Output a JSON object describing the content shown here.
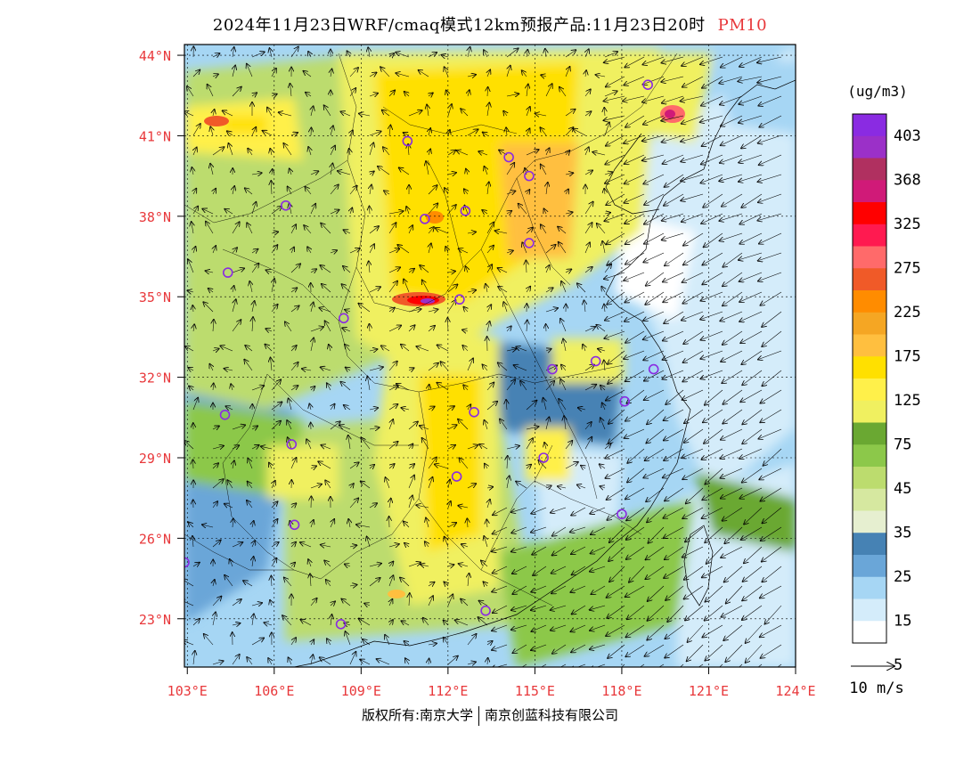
{
  "title": {
    "main": "2024年11月23日WRF/cmaq模式12km预报产品:11月23日20时",
    "variable": "PM10"
  },
  "map": {
    "lat_labels": [
      "44°N",
      "41°N",
      "38°N",
      "35°N",
      "32°N",
      "29°N",
      "26°N",
      "23°N"
    ],
    "lat_values": [
      44,
      41,
      38,
      35,
      32,
      29,
      26,
      23
    ],
    "lon_labels": [
      "103°E",
      "106°E",
      "109°E",
      "112°E",
      "115°E",
      "118°E",
      "121°E",
      "124°E"
    ],
    "lon_values": [
      103,
      106,
      109,
      112,
      115,
      118,
      121,
      124
    ],
    "lon_range": [
      102.9,
      124
    ],
    "lat_range": [
      21.2,
      44.4
    ],
    "label_color": "#e8383b",
    "stations": [
      [
        118.9,
        42.9
      ],
      [
        110.6,
        40.8
      ],
      [
        114.1,
        40.2
      ],
      [
        114.8,
        39.5
      ],
      [
        106.4,
        38.4
      ],
      [
        111.2,
        37.9
      ],
      [
        112.6,
        38.2
      ],
      [
        114.8,
        37.0
      ],
      [
        104.4,
        35.9
      ],
      [
        108.4,
        34.2
      ],
      [
        112.4,
        34.9
      ],
      [
        115.6,
        32.3
      ],
      [
        117.1,
        32.6
      ],
      [
        119.1,
        32.3
      ],
      [
        118.1,
        31.1
      ],
      [
        104.3,
        30.6
      ],
      [
        112.9,
        30.7
      ],
      [
        106.6,
        29.5
      ],
      [
        115.3,
        29.0
      ],
      [
        112.3,
        28.3
      ],
      [
        106.7,
        26.5
      ],
      [
        118.0,
        26.9
      ],
      [
        102.9,
        25.1
      ],
      [
        108.3,
        22.8
      ],
      [
        113.3,
        23.3
      ]
    ]
  },
  "legend": {
    "unit": "(ug/m3)",
    "levels": [
      "403",
      "368",
      "325",
      "275",
      "225",
      "175",
      "125",
      "75",
      "45",
      "35",
      "25",
      "15",
      "5"
    ],
    "colors": [
      "#8a2be2",
      "#9b30c8",
      "#b03060",
      "#d01a78",
      "#ff0000",
      "#ff1a50",
      "#ff6a6a",
      "#f05a28",
      "#ff8c00",
      "#f5a623",
      "#ffbf3f",
      "#ffe000",
      "#fff04a",
      "#f0f060",
      "#6aa832",
      "#8cc84a",
      "#bcdc6e",
      "#d6e8a0",
      "#e6efd0",
      "#4682b4",
      "#6aa6d8",
      "#a6d6f4",
      "#d4ecfa",
      "#ffffff"
    ]
  },
  "wind_legend": {
    "label": "10 m/s"
  },
  "copyright": {
    "left": "版权所有:南京大学",
    "right": "南京创蓝科技有限公司"
  }
}
